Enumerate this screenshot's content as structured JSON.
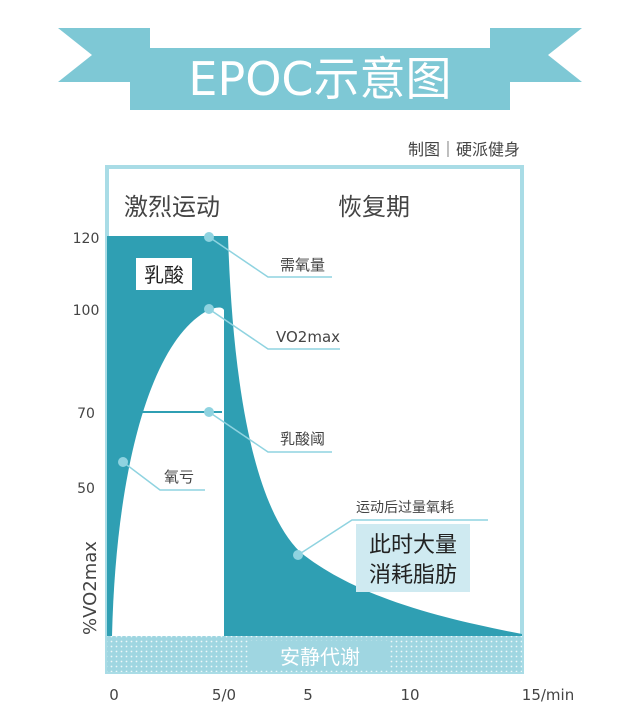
{
  "banner": {
    "title": "EPOC示意图"
  },
  "credit": "制图｜硬派健身",
  "phases": {
    "exercise": "激烈运动",
    "recovery": "恢复期"
  },
  "lactic_box": "乳酸",
  "y_axis": {
    "label": "%VO2max",
    "ticks": [
      "120",
      "100",
      "70",
      "50"
    ]
  },
  "x_axis": {
    "ticks": [
      "0",
      "5/0",
      "5",
      "10",
      "15/min"
    ]
  },
  "callouts": {
    "demand": "需氧量",
    "vo2max": "VO2max",
    "threshold": "乳酸阈",
    "deficit": "氧亏",
    "epoc": "运动后过量氧耗"
  },
  "fat_box": {
    "line1": "此时大量",
    "line2": "消耗脂肪"
  },
  "rest_band": "安静代谢",
  "colors": {
    "teal": "#2f9fb3",
    "teal_light": "#8fd3e0",
    "ribbon": "#7ec8d5",
    "frame": "#a9dce6",
    "text": "#444444"
  }
}
